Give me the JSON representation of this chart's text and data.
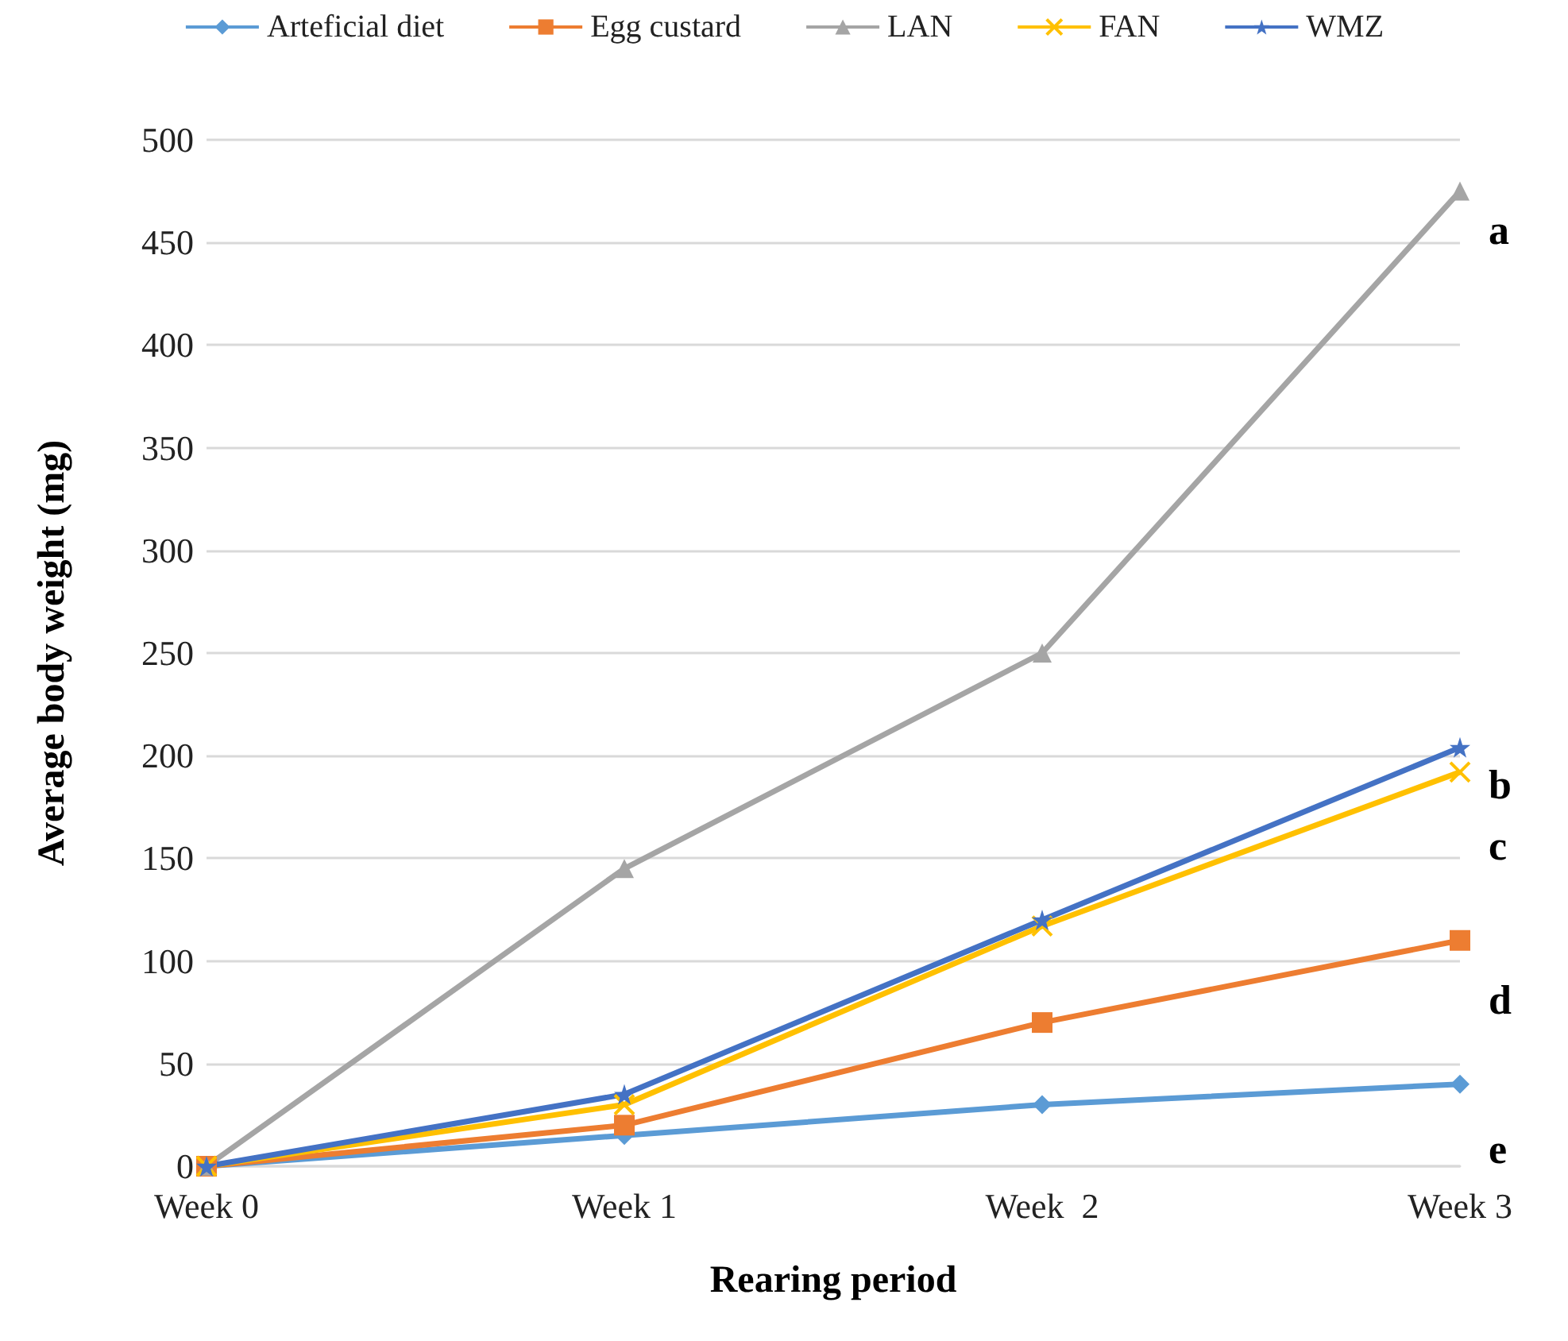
{
  "chart_data": {
    "type": "line",
    "xlabel": "Rearing period",
    "ylabel": "Average body weight (mg)",
    "categories": [
      "Week 0",
      "Week 1",
      "Week  2",
      "Week 3"
    ],
    "series": [
      {
        "name": "Arteficial diet",
        "color": "#5b9bd5",
        "marker": "diamond",
        "values": [
          0,
          15,
          30,
          40
        ]
      },
      {
        "name": "Egg custard",
        "color": "#ed7d31",
        "marker": "square",
        "values": [
          0,
          20,
          70,
          110
        ]
      },
      {
        "name": "LAN",
        "color": "#a5a5a5",
        "marker": "triangle",
        "values": [
          0,
          145,
          250,
          475
        ]
      },
      {
        "name": "FAN",
        "color": "#ffc000",
        "marker": "cross",
        "values": [
          0,
          30,
          117,
          192
        ]
      },
      {
        "name": "WMZ",
        "color": "#4472c4",
        "marker": "star",
        "values": [
          0,
          35,
          120,
          204
        ]
      }
    ],
    "ylim": [
      0,
      500
    ],
    "yticks": [
      0,
      50,
      100,
      150,
      200,
      250,
      300,
      350,
      400,
      450,
      500
    ],
    "grid": "y",
    "legend": "top",
    "annotations": [
      "a",
      "b",
      "c",
      "d",
      "e"
    ]
  }
}
